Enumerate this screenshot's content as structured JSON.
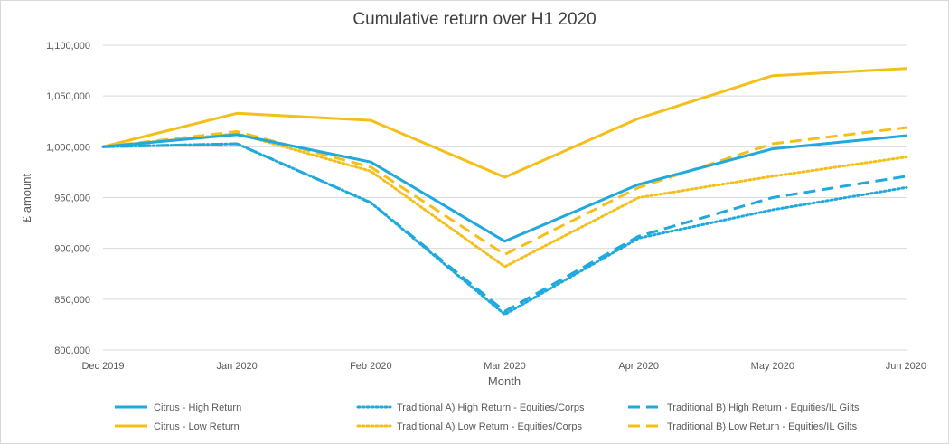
{
  "chart_data": {
    "type": "line",
    "title": "Cumulative return over H1 2020",
    "xlabel": "Month",
    "ylabel": "£ amount",
    "categories": [
      "Dec 2019",
      "Jan 2020",
      "Feb 2020",
      "Mar 2020",
      "Apr 2020",
      "May 2020",
      "Jun 2020"
    ],
    "ylim": [
      800000,
      1100000
    ],
    "yticks": [
      800000,
      850000,
      900000,
      950000,
      1000000,
      1050000,
      1100000
    ],
    "ytick_labels": [
      "800,000",
      "850,000",
      "900,000",
      "950,000",
      "1,000,000",
      "1,050,000",
      "1,100,000"
    ],
    "grid": true,
    "legend_position": "bottom",
    "series": [
      {
        "name": "Citrus - High Return",
        "color": "#1fa9dd",
        "style": "solid",
        "values": [
          1000000,
          1012000,
          985000,
          907000,
          963000,
          998000,
          1011000
        ]
      },
      {
        "name": "Traditional A) High Return - Equities/Corps",
        "color": "#1fa9dd",
        "style": "dotted",
        "values": [
          1000000,
          1003000,
          945000,
          835000,
          910000,
          938000,
          960000
        ]
      },
      {
        "name": "Traditional B) High Return - Equities/IL Gilts",
        "color": "#1fa9dd",
        "style": "dashed",
        "values": [
          1000000,
          1003000,
          945000,
          838000,
          912000,
          950000,
          971000
        ]
      },
      {
        "name": "Citrus - Low Return",
        "color": "#f5bf1a",
        "style": "solid",
        "values": [
          1000000,
          1033000,
          1026000,
          970000,
          1028000,
          1070000,
          1077000
        ]
      },
      {
        "name": "Traditional A) Low Return - Equities/Corps",
        "color": "#f5bf1a",
        "style": "dotted",
        "values": [
          1000000,
          1013000,
          976000,
          882000,
          950000,
          971000,
          990000
        ]
      },
      {
        "name": "Traditional B) Low Return - Equities/IL Gilts",
        "color": "#f5bf1a",
        "style": "dashed",
        "values": [
          1000000,
          1015000,
          980000,
          894000,
          960000,
          1003000,
          1019000
        ]
      }
    ]
  }
}
